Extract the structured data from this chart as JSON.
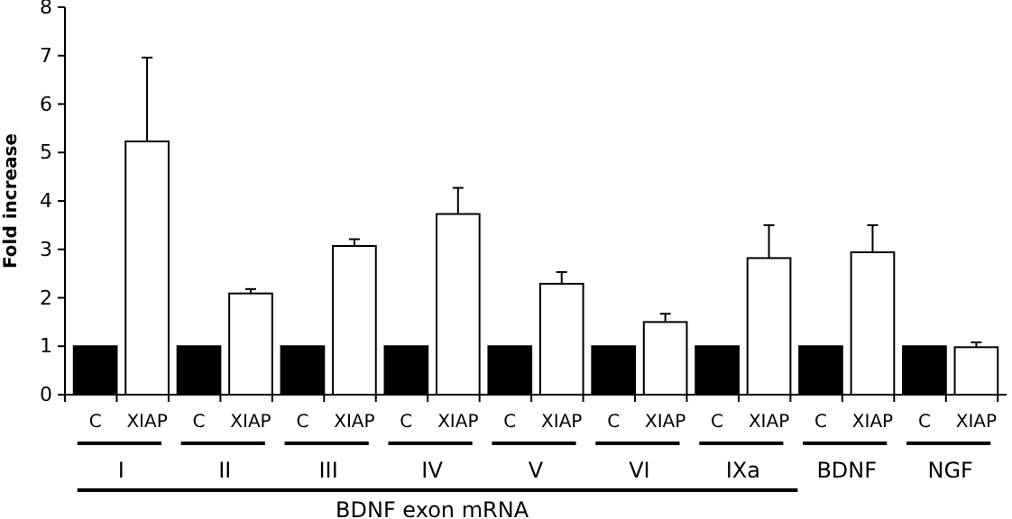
{
  "chart_data": {
    "type": "bar",
    "ylabel": "Fold increase",
    "xlabel": "BDNF exon mRNA",
    "categories": [
      "C",
      "XIAP",
      "C",
      "XIAP",
      "C",
      "XIAP",
      "C",
      "XIAP",
      "C",
      "XIAP",
      "C",
      "XIAP",
      "C",
      "XIAP",
      "C",
      "XIAP",
      "C",
      "XIAP"
    ],
    "values": [
      1,
      5.23,
      1,
      2.09,
      1,
      3.07,
      1,
      3.73,
      1,
      2.29,
      1,
      1.5,
      1,
      2.82,
      1,
      2.94,
      1,
      0.98
    ],
    "colors": [
      "#000000",
      "#ffffff",
      "#000000",
      "#ffffff",
      "#000000",
      "#ffffff",
      "#000000",
      "#ffffff",
      "#000000",
      "#ffffff",
      "#000000",
      "#ffffff",
      "#000000",
      "#ffffff",
      "#000000",
      "#ffffff",
      "#000000",
      "#ffffff"
    ],
    "errors": [
      null,
      [
        5.23,
        6.96
      ],
      null,
      [
        2.09,
        2.18
      ],
      null,
      [
        3.07,
        3.21
      ],
      null,
      [
        3.73,
        4.27
      ],
      null,
      [
        2.29,
        2.53
      ],
      null,
      [
        1.5,
        1.67
      ],
      null,
      [
        2.82,
        3.5
      ],
      null,
      [
        2.94,
        3.5
      ],
      null,
      [
        0.98,
        1.08
      ]
    ],
    "annotations": [
      "I",
      "II",
      "III",
      "IV",
      "V",
      "VI",
      "IXa",
      "BDNF",
      "NGF"
    ],
    "ylim": [
      0,
      8
    ],
    "yticks": [
      0,
      1,
      2,
      3,
      4,
      5,
      6,
      7,
      8
    ],
    "grid": false
  }
}
